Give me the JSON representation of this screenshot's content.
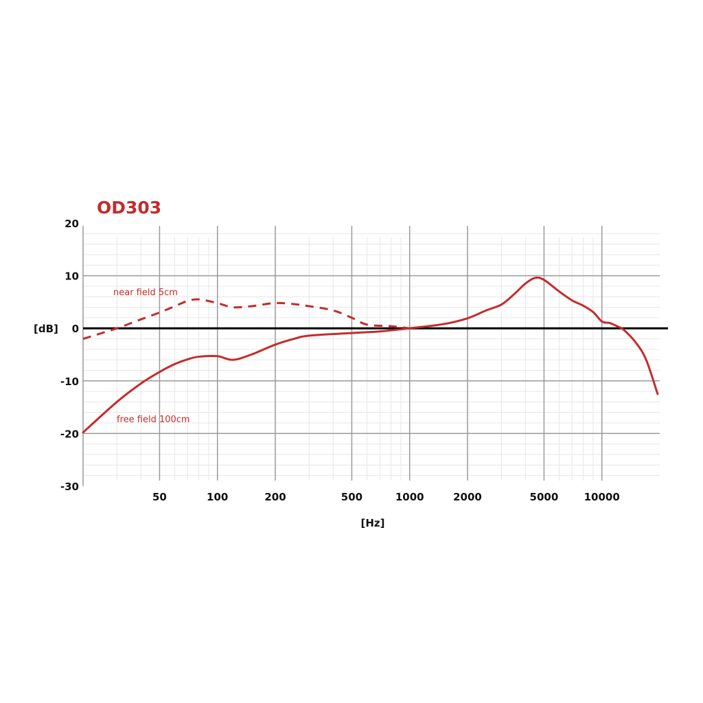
{
  "chart_data": {
    "type": "line",
    "title": "OD303",
    "xlabel": "[Hz]",
    "ylabel": "[dB]",
    "xscale": "log",
    "xlim": [
      20,
      20000
    ],
    "ylim": [
      -30,
      20
    ],
    "grid": true,
    "x_ticks": [
      50,
      100,
      200,
      500,
      1000,
      2000,
      5000,
      10000
    ],
    "x_tick_labels": [
      "50",
      "100",
      "200",
      "500",
      "1000",
      "2000",
      "5000",
      "10000"
    ],
    "y_ticks": [
      20,
      10,
      0,
      -10,
      -20,
      -30
    ],
    "y_tick_labels": [
      "20",
      "10",
      "0",
      "-10",
      "-20",
      "-30"
    ],
    "colors": {
      "series": "#c62a2a",
      "zero_line": "#000000",
      "grid_major": "#999999",
      "grid_minor": "#e6e6e6"
    },
    "series": [
      {
        "name": "near field 5cm",
        "style": "dashed",
        "x": [
          20,
          30,
          40,
          50,
          60,
          70,
          80,
          100,
          120,
          150,
          200,
          250,
          300,
          400,
          500,
          600,
          800,
          1000
        ],
        "y": [
          -2,
          0,
          1.7,
          3,
          4.2,
          5.2,
          5.5,
          4.8,
          4.0,
          4.2,
          4.8,
          4.6,
          4.2,
          3.4,
          2.0,
          0.7,
          0.4,
          0
        ]
      },
      {
        "name": "free field 100cm",
        "style": "solid",
        "x": [
          20,
          30,
          40,
          50,
          60,
          70,
          80,
          100,
          120,
          150,
          200,
          250,
          300,
          500,
          700,
          1000,
          1500,
          2000,
          2500,
          3000,
          3500,
          4000,
          4500,
          5000,
          6000,
          7000,
          8000,
          9000,
          10000,
          11000,
          12000,
          13000,
          15000,
          17000,
          19500
        ],
        "y": [
          -19.8,
          -14,
          -10.5,
          -8.3,
          -6.8,
          -5.9,
          -5.4,
          -5.3,
          -6.0,
          -5.0,
          -3.1,
          -2.0,
          -1.4,
          -0.9,
          -0.6,
          0,
          0.8,
          1.9,
          3.4,
          4.5,
          6.5,
          8.5,
          9.6,
          9.2,
          7.0,
          5.3,
          4.3,
          3.1,
          1.3,
          1.0,
          0.4,
          -0.3,
          -2.7,
          -6,
          -12.5
        ]
      }
    ]
  }
}
